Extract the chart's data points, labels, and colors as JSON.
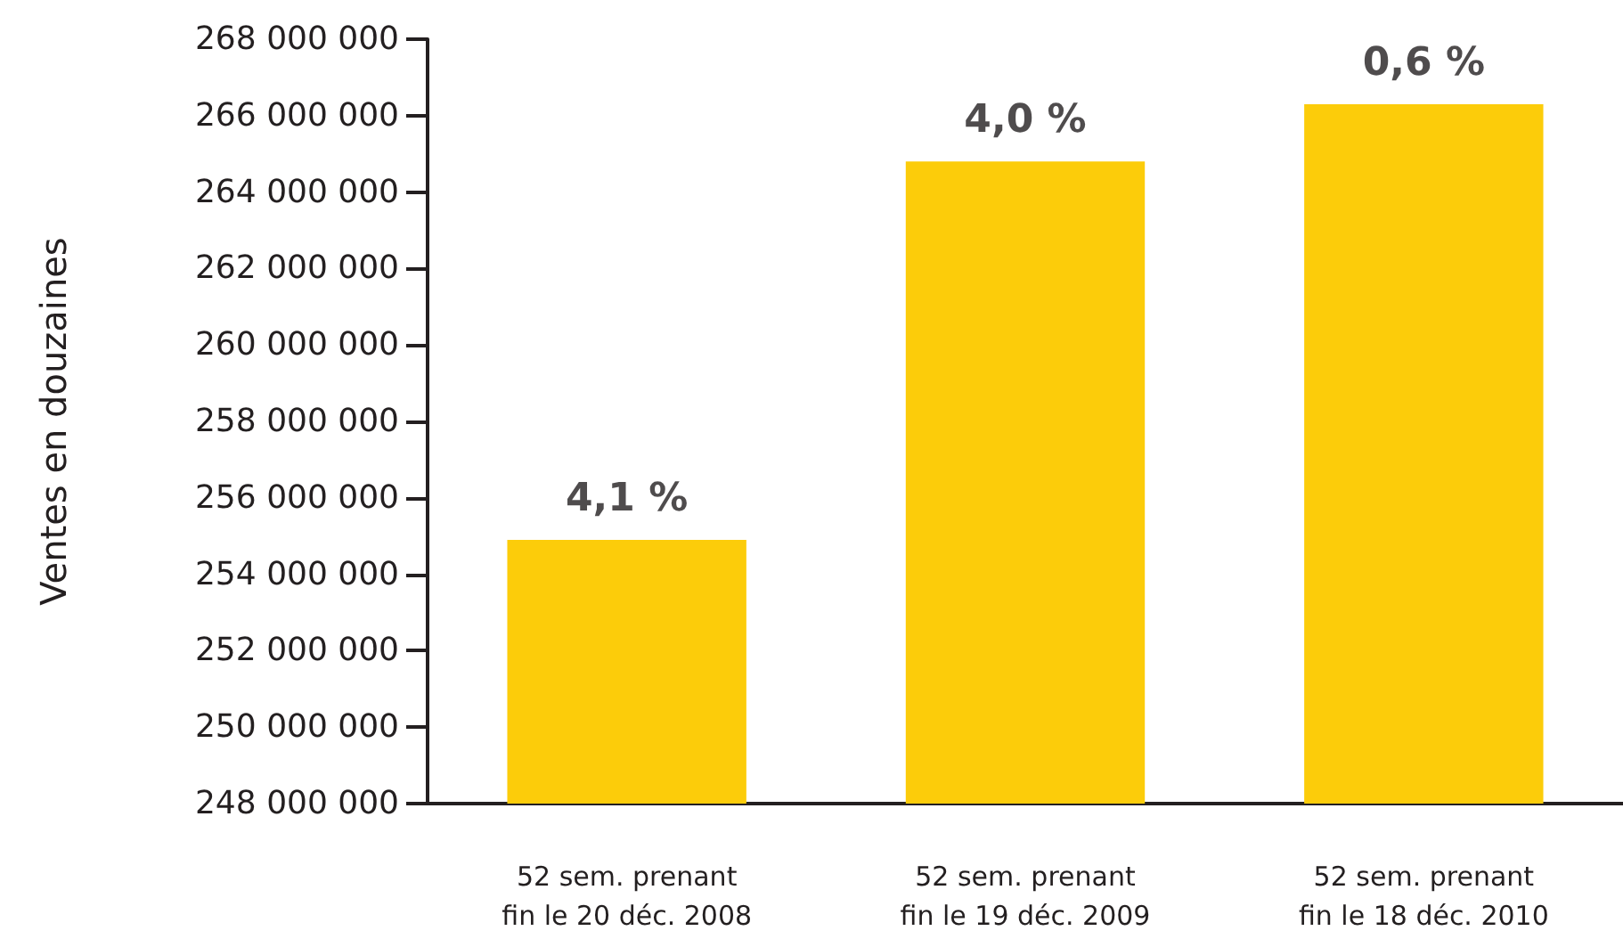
{
  "chart_data": {
    "type": "bar",
    "ylabel": "Ventes en douzaines",
    "categories": [
      "52 sem. prenant\nfin le 20 déc. 2008",
      "52 sem. prenant\nfin le 19 déc. 2009",
      "52 sem. prenant\nfin le 18 déc. 2010"
    ],
    "values": [
      254900000,
      264800000,
      266300000
    ],
    "annotations": [
      {
        "text": "4,1 %",
        "x": "52 sem. prenant\nfin le 20 déc. 2008",
        "y": 254900000
      },
      {
        "text": "4,0 %",
        "x": "52 sem. prenant\nfin le 19 déc. 2009",
        "y": 264800000
      },
      {
        "text": "0,6 %",
        "x": "52 sem. prenant\nfin le 18 déc. 2010",
        "y": 266300000
      }
    ],
    "color": "#fccc0a",
    "ylim": [
      248000000,
      268000000
    ],
    "yticks": [
      {
        "value": 248000000,
        "label": "248 000 000"
      },
      {
        "value": 250000000,
        "label": "250 000 000"
      },
      {
        "value": 252000000,
        "label": "252 000 000"
      },
      {
        "value": 254000000,
        "label": "254 000 000"
      },
      {
        "value": 256000000,
        "label": "256 000 000"
      },
      {
        "value": 258000000,
        "label": "258 000 000"
      },
      {
        "value": 260000000,
        "label": "260 000 000"
      },
      {
        "value": 262000000,
        "label": "262 000 000"
      },
      {
        "value": 264000000,
        "label": "264 000 000"
      },
      {
        "value": 266000000,
        "label": "266 000 000"
      },
      {
        "value": 268000000,
        "label": "268 000 000"
      }
    ],
    "grid": false
  }
}
